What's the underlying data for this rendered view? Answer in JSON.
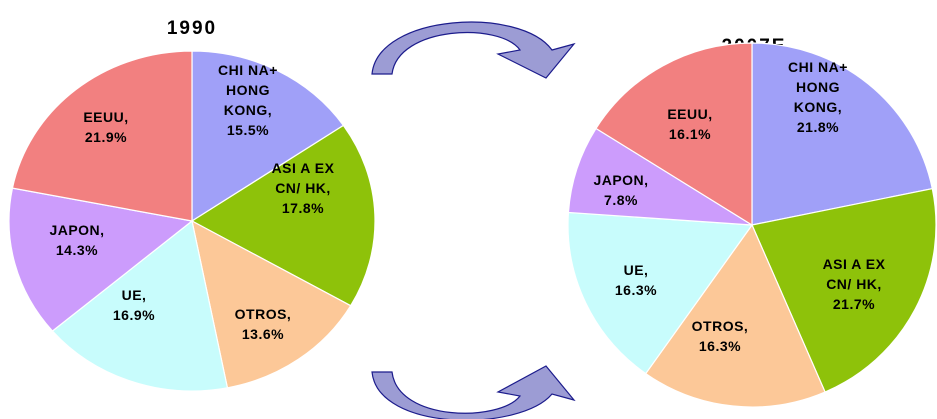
{
  "colors": {
    "eeuu": "#f28080",
    "china": "#a0a0f8",
    "asia": "#8ec20a",
    "otros": "#fcc898",
    "ue": "#c8fcfc",
    "japon": "#cc9cfc",
    "arrow_fill": "#9c9cd4",
    "arrow_stroke": "#1c1c8c"
  },
  "chart_data": [
    {
      "type": "pie",
      "title": "1990",
      "slices": [
        {
          "name": "CHINA+ HONG KONG",
          "value": 15.5,
          "label_lines": [
            "CHI NA+",
            "HONG",
            "KONG,",
            "15.5%"
          ],
          "color_key": "china"
        },
        {
          "name": "ASI A EX CN/ HK",
          "value": 17.8,
          "label_lines": [
            "ASI A EX",
            "CN/ HK,",
            "17.8%"
          ],
          "color_key": "asia"
        },
        {
          "name": "OTROS",
          "value": 13.6,
          "label_lines": [
            "OTROS,",
            "13.6%"
          ],
          "color_key": "otros"
        },
        {
          "name": "UE",
          "value": 16.9,
          "label_lines": [
            "UE,",
            "16.9%"
          ],
          "color_key": "ue"
        },
        {
          "name": "JAPON",
          "value": 14.3,
          "label_lines": [
            "JAPON,",
            "14.3%"
          ],
          "color_key": "japon"
        },
        {
          "name": "EEUU",
          "value": 21.9,
          "label_lines": [
            "EEUU,",
            "21.9%"
          ],
          "color_key": "eeuu"
        }
      ]
    },
    {
      "type": "pie",
      "title": "2007E",
      "slices": [
        {
          "name": "CHINA+ HONG KONG",
          "value": 21.8,
          "label_lines": [
            "CHI NA+",
            "HONG",
            "KONG,",
            "21.8%"
          ],
          "color_key": "china"
        },
        {
          "name": "ASI A EX CN/ HK",
          "value": 21.7,
          "label_lines": [
            "ASI A EX",
            "CN/ HK,",
            "21.7%"
          ],
          "color_key": "asia"
        },
        {
          "name": "OTROS",
          "value": 16.3,
          "label_lines": [
            "OTROS,",
            "16.3%"
          ],
          "color_key": "otros"
        },
        {
          "name": "UE",
          "value": 16.3,
          "label_lines": [
            "UE,",
            "16.3%"
          ],
          "color_key": "ue"
        },
        {
          "name": "JAPON",
          "value": 7.8,
          "label_lines": [
            "JAPON,",
            "7.8%"
          ],
          "color_key": "japon"
        },
        {
          "name": "EEUU",
          "value": 16.1,
          "label_lines": [
            "EEUU,",
            "16.1%"
          ],
          "color_key": "eeuu"
        }
      ]
    }
  ]
}
